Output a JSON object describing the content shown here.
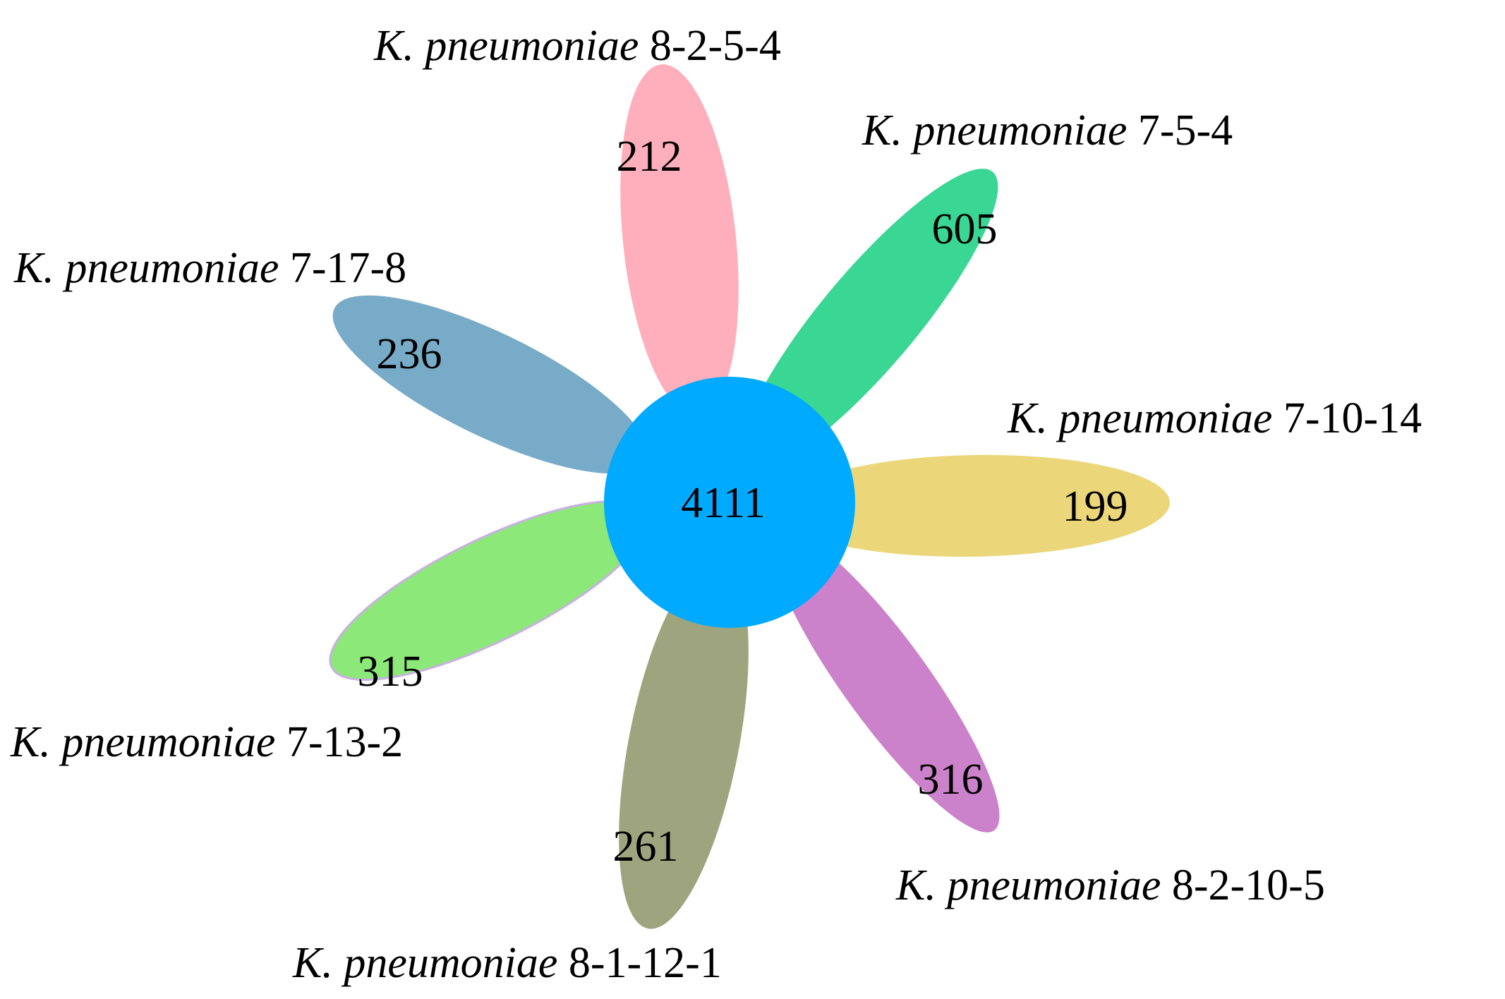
{
  "core": {
    "count": "4111",
    "color": "#00aaff"
  },
  "petals": [
    {
      "id": "8-2-5-4",
      "genus": "K. pneumoniae",
      "strain": "8-2-5-4",
      "count": "212",
      "color": "#ffaebb"
    },
    {
      "id": "7-5-4",
      "genus": "K. pneumoniae",
      "strain": "7-5-4",
      "count": "605",
      "color": "#3ad694"
    },
    {
      "id": "7-10-14",
      "genus": "K. pneumoniae",
      "strain": "7-10-14",
      "count": "199",
      "color": "#ecd67a"
    },
    {
      "id": "8-2-10-5",
      "genus": "K. pneumoniae",
      "strain": "8-2-10-5",
      "count": "316",
      "color": "#cc82cb"
    },
    {
      "id": "8-1-12-1",
      "genus": "K. pneumoniae",
      "strain": "8-1-12-1",
      "count": "261",
      "color": "#9ea57e"
    },
    {
      "id": "7-13-2",
      "genus": "K. pneumoniae",
      "strain": "7-13-2",
      "count": "315",
      "color": "#8ce879"
    },
    {
      "id": "7-17-8",
      "genus": "K. pneumoniae",
      "strain": "7-17-8",
      "count": "236",
      "color": "#78abc7"
    }
  ]
}
